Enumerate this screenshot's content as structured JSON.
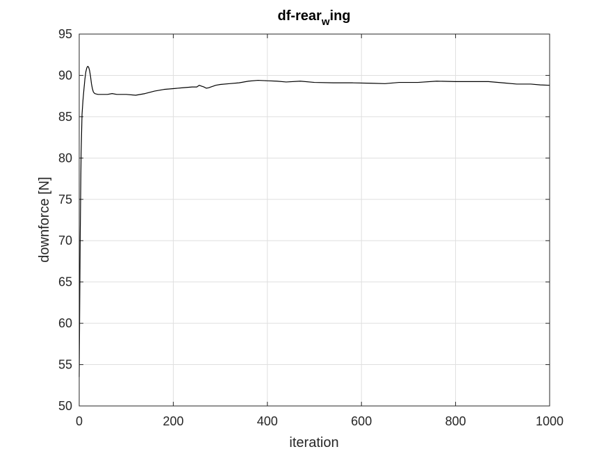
{
  "chart_data": {
    "type": "line",
    "title": {
      "main": "df-rear",
      "subscript": "w",
      "suffix": "ing"
    },
    "xlabel": "iteration",
    "ylabel": "downforce [N]",
    "xlim": [
      0,
      1000
    ],
    "ylim": [
      50,
      95
    ],
    "xticks": [
      0,
      200,
      400,
      600,
      800,
      1000
    ],
    "xtick_labels": [
      "0",
      "200",
      "400",
      "600",
      "800",
      "1000"
    ],
    "yticks": [
      50,
      55,
      60,
      65,
      70,
      75,
      80,
      85,
      90,
      95
    ],
    "ytick_labels": [
      "50",
      "55",
      "60",
      "65",
      "70",
      "75",
      "80",
      "85",
      "90",
      "95"
    ],
    "grid": true,
    "line_color": "#000000",
    "series": [
      {
        "x": [
          0,
          2,
          4,
          6,
          8,
          10,
          12,
          14,
          16,
          18,
          20,
          22,
          24,
          26,
          28,
          30,
          33,
          36,
          40,
          45,
          50,
          60,
          70,
          80,
          100,
          120,
          140,
          160,
          180,
          200,
          220,
          240,
          250,
          255,
          260,
          265,
          270,
          275,
          280,
          285,
          290,
          300,
          320,
          340,
          360,
          380,
          400,
          420,
          440,
          470,
          500,
          540,
          580,
          620,
          650,
          680,
          720,
          760,
          800,
          840,
          870,
          900,
          930,
          960,
          980,
          1000
        ],
        "y": [
          53.5,
          70.0,
          80.5,
          85.3,
          87.0,
          88.3,
          89.5,
          90.4,
          90.9,
          91.1,
          91.0,
          90.6,
          89.9,
          89.0,
          88.4,
          88.0,
          87.8,
          87.75,
          87.7,
          87.7,
          87.7,
          87.7,
          87.8,
          87.7,
          87.7,
          87.6,
          87.8,
          88.1,
          88.3,
          88.4,
          88.5,
          88.6,
          88.6,
          88.8,
          88.7,
          88.6,
          88.45,
          88.5,
          88.6,
          88.7,
          88.8,
          88.9,
          89.0,
          89.1,
          89.3,
          89.4,
          89.35,
          89.3,
          89.2,
          89.3,
          89.15,
          89.1,
          89.1,
          89.05,
          89.0,
          89.15,
          89.15,
          89.3,
          89.25,
          89.25,
          89.25,
          89.1,
          88.95,
          88.95,
          88.85,
          88.8
        ]
      }
    ]
  }
}
